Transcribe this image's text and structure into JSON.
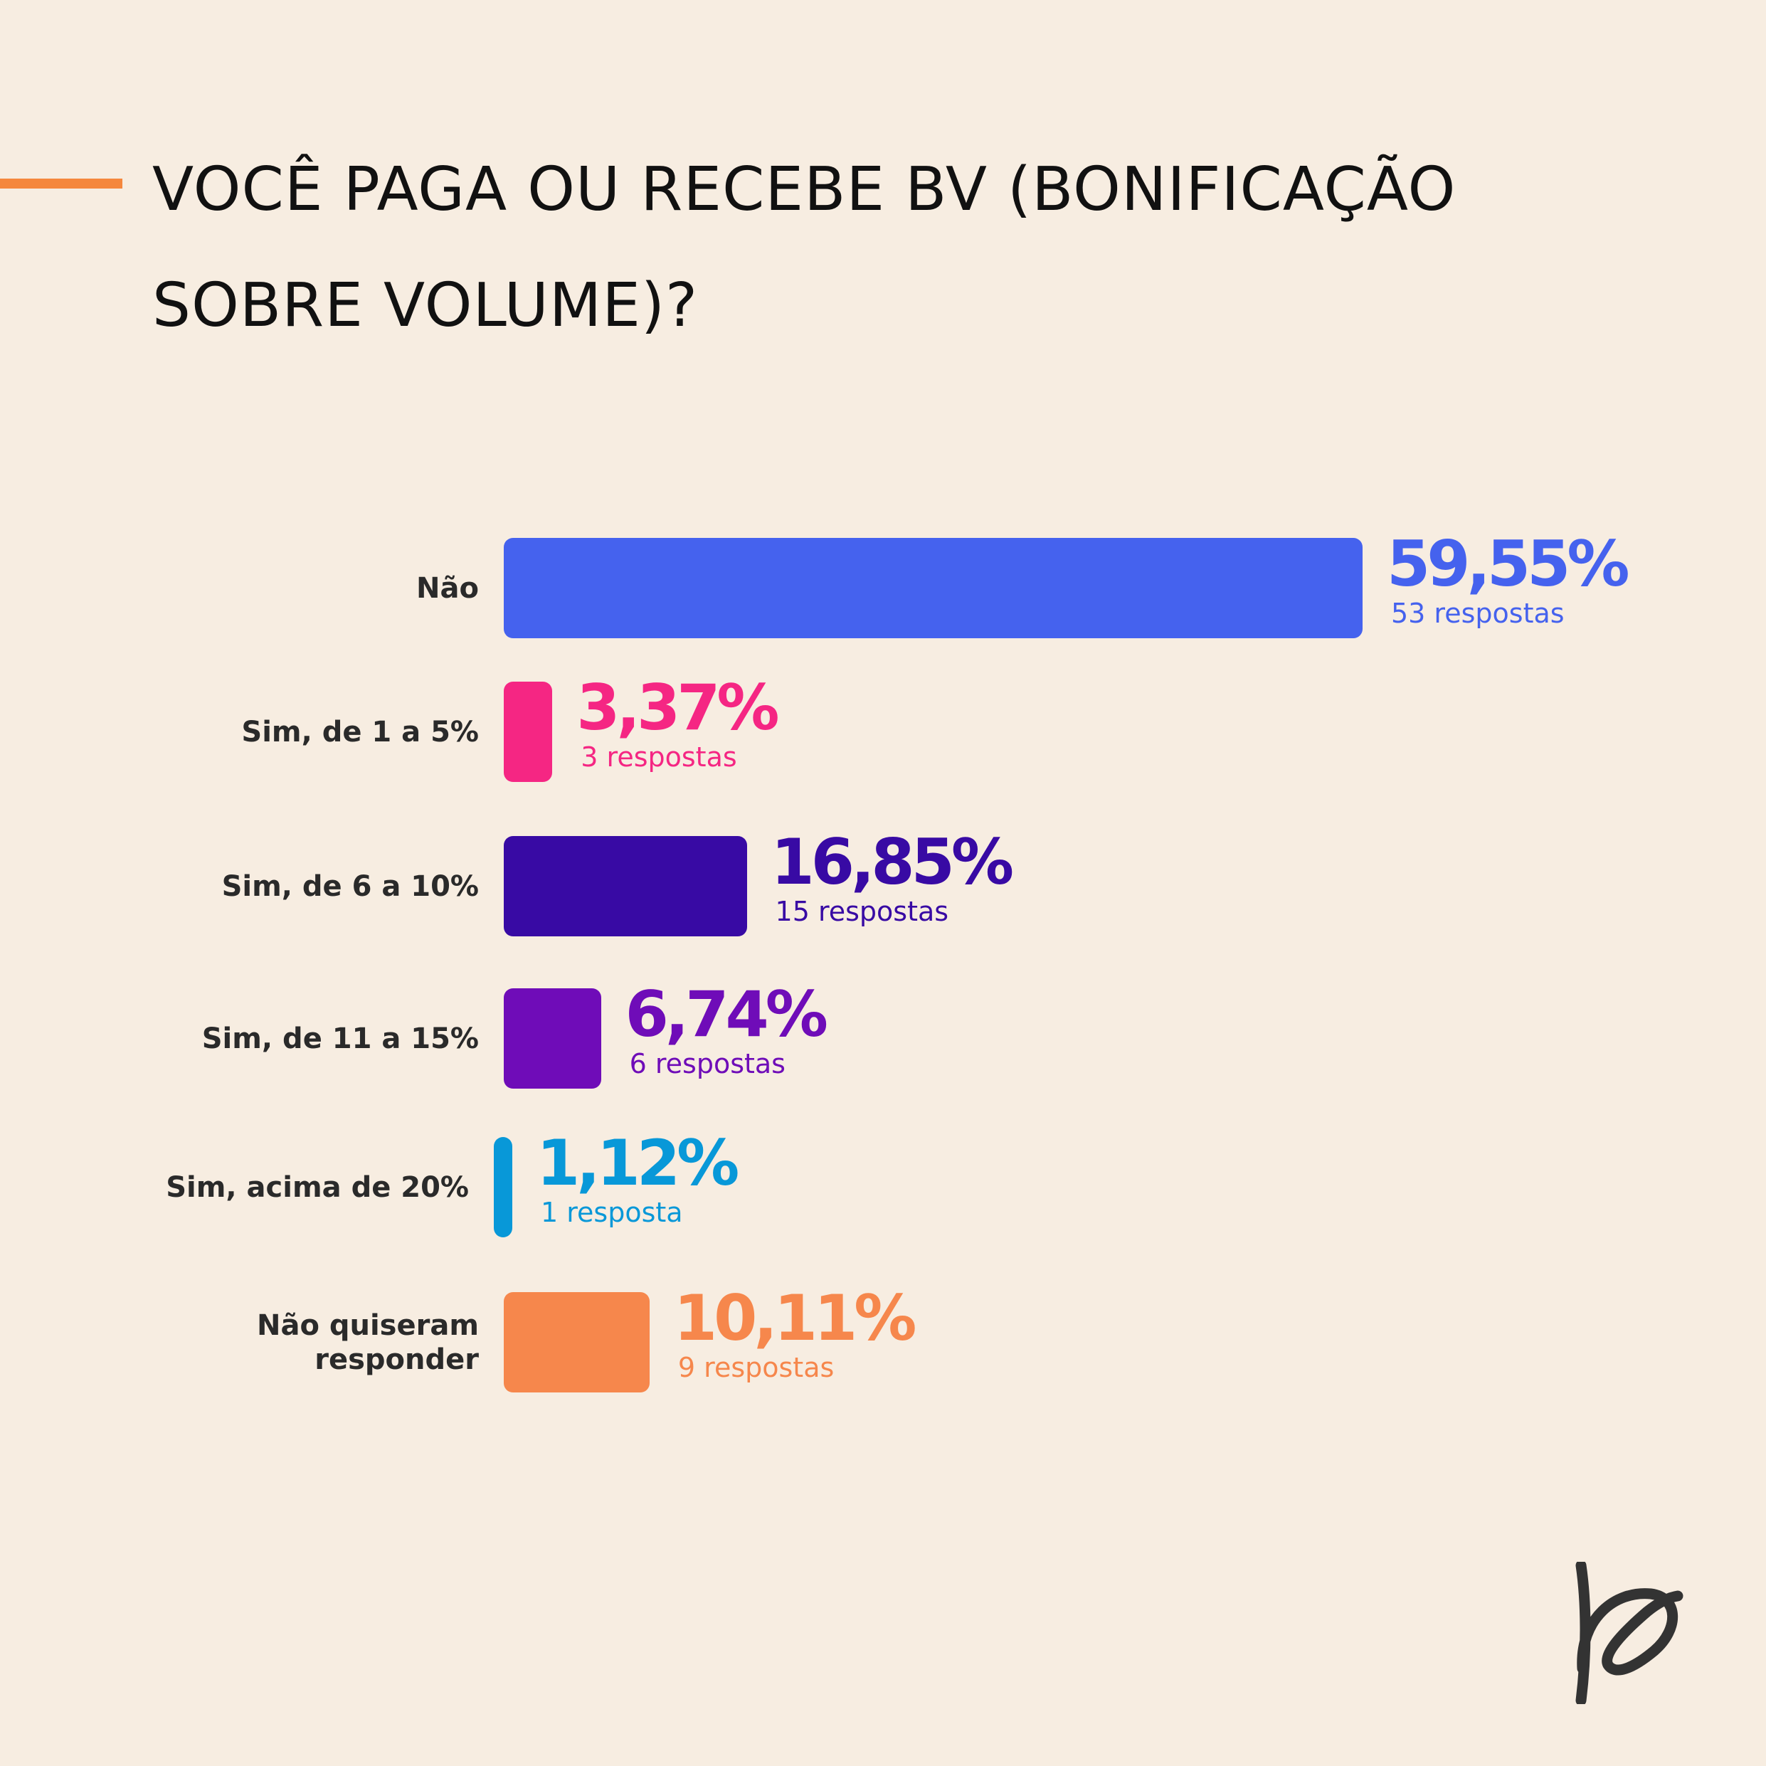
{
  "title": {
    "line1": "VOCÊ PAGA OU RECEBE BV (BONIFICAÇÃO",
    "line2": "SOBRE VOLUME)?"
  },
  "colors": {
    "background": "#f7ede1",
    "accent": "#f5873d"
  },
  "chart_data": {
    "type": "bar",
    "orientation": "horizontal",
    "categories": [
      "Não",
      "Sim, de 1 a 5%",
      "Sim, de 6 a 10%",
      "Sim, de 11 a 15%",
      "Sim, acima de 20%",
      "Não quiseram responder"
    ],
    "values": [
      59.55,
      3.37,
      16.85,
      6.74,
      1.12,
      10.11
    ],
    "counts": [
      53,
      3,
      15,
      6,
      1,
      9
    ],
    "value_labels": [
      "59,55%",
      "3,37%",
      "16,85%",
      "6,74%",
      "1,12%",
      "10,11%"
    ],
    "count_labels": [
      "53 respostas",
      "3 respostas",
      "15 respostas",
      "6 respostas",
      "1 resposta",
      "9 respostas"
    ],
    "colors": [
      "#4562ee",
      "#f52683",
      "#380aa4",
      "#6f0cb8",
      "#0898d8",
      "#f6874c"
    ]
  }
}
